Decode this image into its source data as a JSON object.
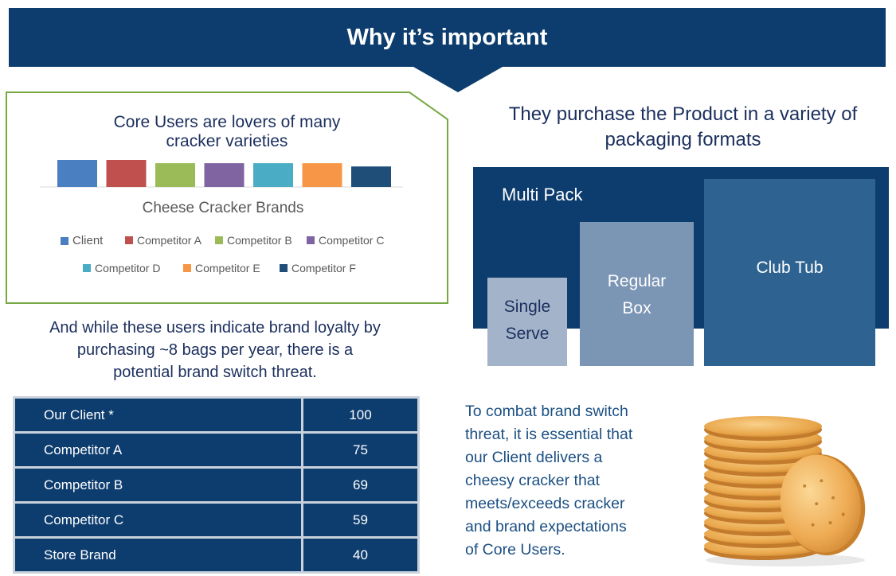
{
  "banner": {
    "title": "Why it’s important"
  },
  "chart_box": {
    "title_line1": "Core Users are lovers of many",
    "title_line2": "cracker varieties",
    "axis_label": "Cheese Cracker Brands"
  },
  "chart_data": {
    "type": "bar",
    "categories": [
      "Cheese Cracker Brands"
    ],
    "xlabel": "Cheese Cracker Brands",
    "series": [
      {
        "name": "Client",
        "values": [
          33
        ],
        "color": "#4a7fc1"
      },
      {
        "name": "Competitor A",
        "values": [
          33
        ],
        "color": "#c0504d"
      },
      {
        "name": "Competitor B",
        "values": [
          29
        ],
        "color": "#9bbb59"
      },
      {
        "name": "Competitor C",
        "values": [
          29
        ],
        "color": "#8064a2"
      },
      {
        "name": "Competitor D",
        "values": [
          29
        ],
        "color": "#4bacc6"
      },
      {
        "name": "Competitor E",
        "values": [
          29
        ],
        "color": "#f79646"
      },
      {
        "name": "Competitor F",
        "values": [
          25
        ],
        "color": "#1f4e79"
      }
    ],
    "legend": "bottom",
    "grid": false
  },
  "loyalty_text": {
    "line1": "And while these users indicate brand loyalty by",
    "line2": "purchasing ~8 bags per year, there is a",
    "line3": "potential brand switch threat."
  },
  "loyalty_table": {
    "rows": [
      {
        "name": "Our Client  *",
        "value": "100"
      },
      {
        "name": "Competitor A",
        "value": "75"
      },
      {
        "name": "Competitor B",
        "value": "69"
      },
      {
        "name": "Competitor C",
        "value": "59"
      },
      {
        "name": "Store Brand",
        "value": "40"
      }
    ]
  },
  "packaging": {
    "heading_line1": "They purchase the Product in a variety of",
    "heading_line2": "packaging formats",
    "multi_pack": "Multi Pack",
    "single_serve_line1": "Single",
    "single_serve_line2": "Serve",
    "regular_box_line1": "Regular",
    "regular_box_line2": "Box",
    "club_tub": "Club Tub",
    "colors": {
      "multi_pack": "#0d3d6e",
      "single_serve": "#a3b4ca",
      "regular_box": "#7b95b5",
      "club_tub": "#2e6391"
    }
  },
  "combat": {
    "line1": "To combat brand switch",
    "line2": "threat, it is essential that",
    "line3": "our Client delivers a",
    "line4": "cheesy cracker  that",
    "line5": "meets/exceeds cracker",
    "line6": "and brand expectations",
    "line7": "of Core Users."
  },
  "image": {
    "icon": "cracker-stack-image"
  }
}
